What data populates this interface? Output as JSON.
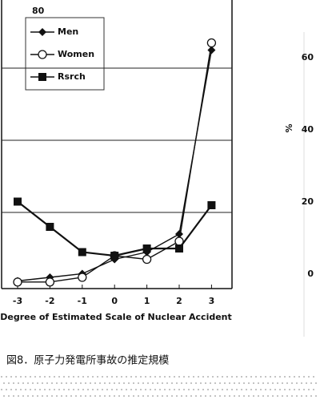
{
  "chart_data": {
    "type": "line",
    "annotation": "80",
    "x_label": "Degree of Estimated Scale of Nuclear Accident",
    "categories": [
      "-3",
      "-2",
      "-1",
      "0",
      "1",
      "2",
      "3"
    ],
    "series": [
      {
        "name": "Men",
        "color": "#111111",
        "marker": "diamond",
        "values": [
          1,
          2,
          3,
          7,
          9,
          14,
          65
        ]
      },
      {
        "name": "Women",
        "color": "#111111",
        "marker": "circle",
        "values": [
          0.7,
          0.7,
          2,
          8,
          7,
          12,
          67
        ]
      },
      {
        "name": "Rsrch",
        "color": "#111111",
        "marker": "square",
        "values": [
          23,
          16,
          9,
          8,
          10,
          10,
          22
        ]
      }
    ],
    "ylim": [
      0,
      80
    ],
    "yticks": [
      0,
      20,
      40,
      60
    ],
    "grid": true
  },
  "caption": "図8．原子力発電所事故の推定規模",
  "adjacent_axis": {
    "label": "%",
    "ticks": [
      "60",
      "40",
      "20",
      "0"
    ]
  }
}
